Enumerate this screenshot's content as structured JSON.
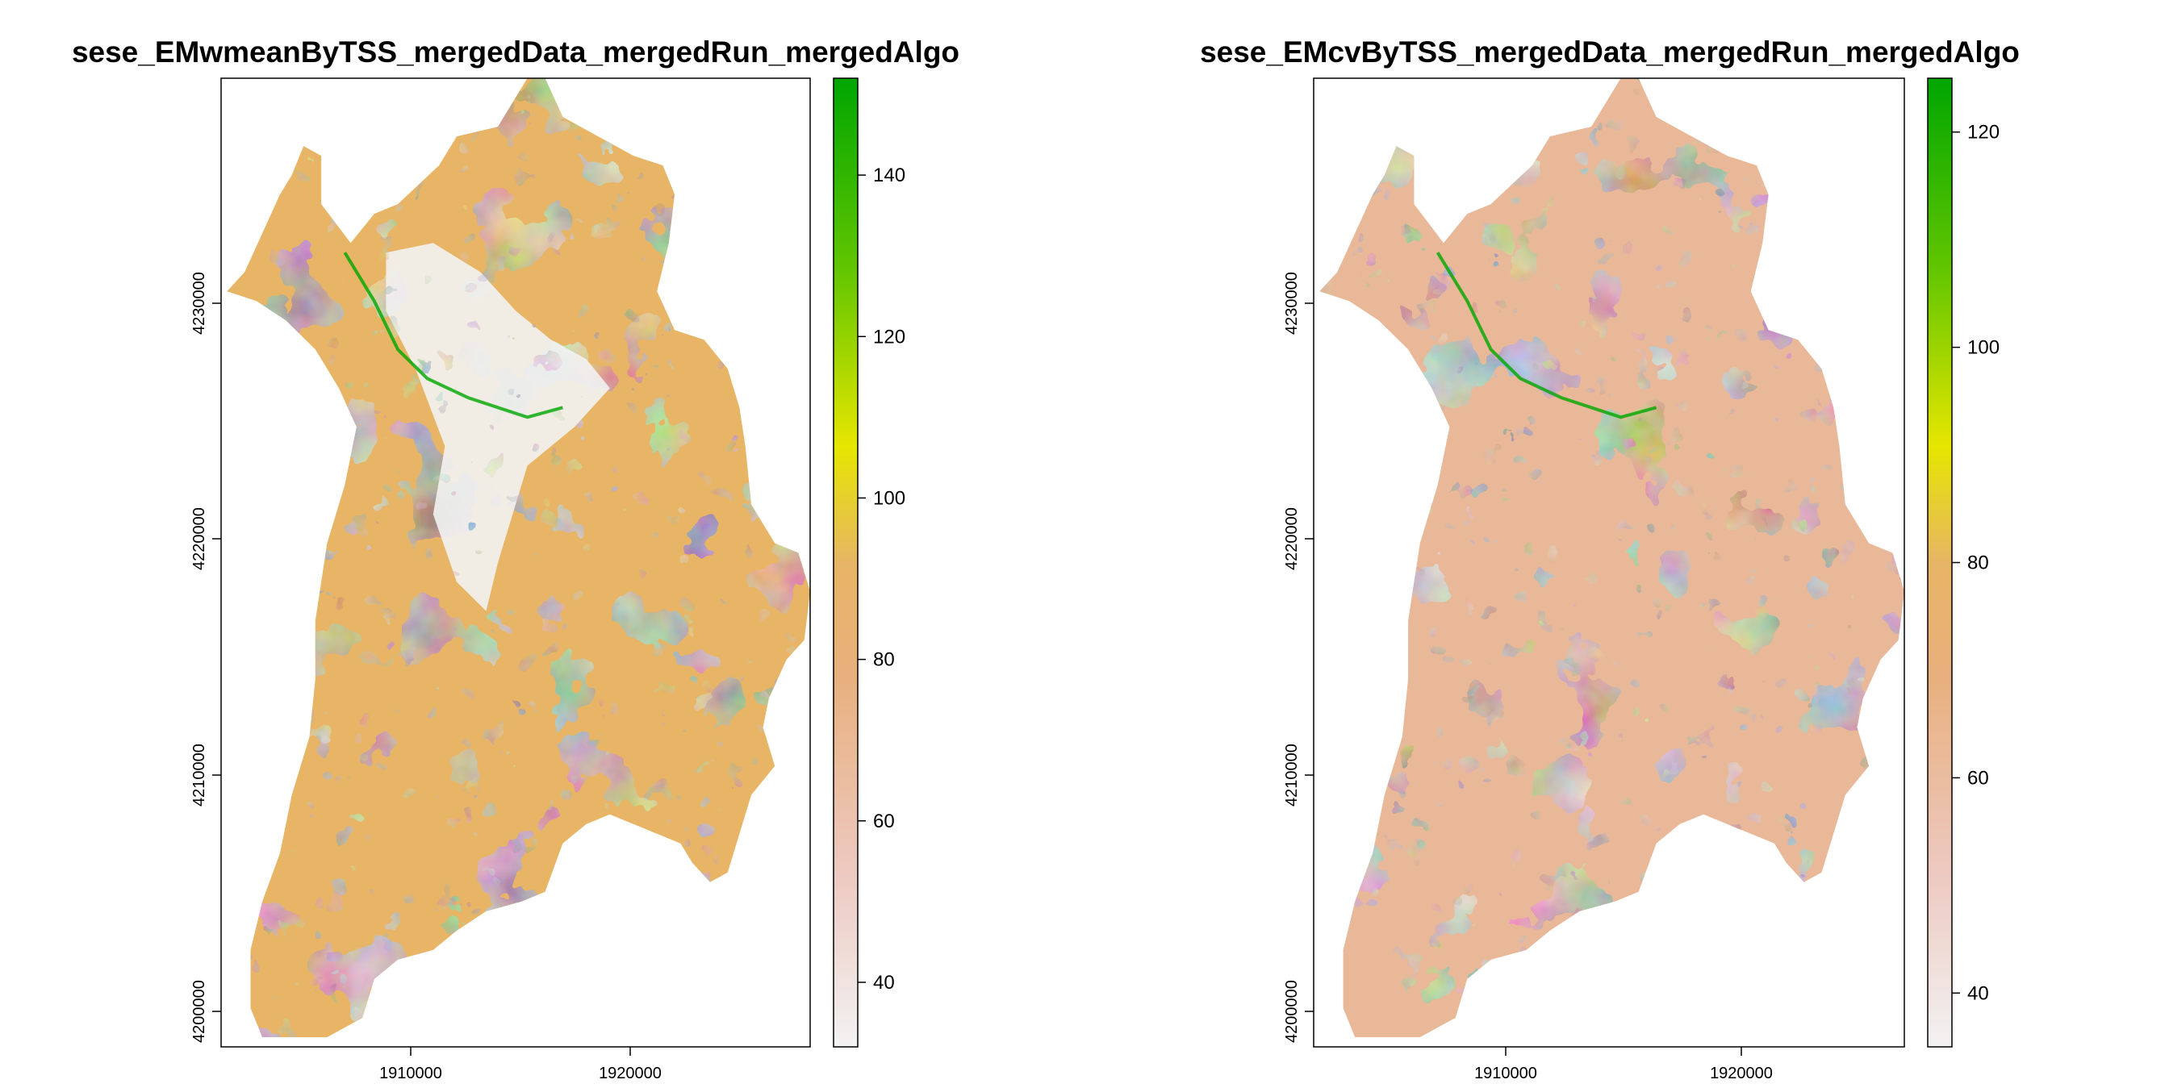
{
  "maps": [
    {
      "title": "sese_EMwmeanByTSS_mergedData_mergedRun_mergedAlgo",
      "x_ticks": [
        "1910000",
        "1920000"
      ],
      "y_ticks": [
        "4200000",
        "4210000",
        "4220000",
        "4230000"
      ],
      "legend_ticks": [
        "40",
        "60",
        "80",
        "100",
        "120",
        "140"
      ],
      "legend_range": [
        32,
        152
      ]
    },
    {
      "title": "sese_EMcvByTSS_mergedData_mergedRun_mergedAlgo",
      "x_ticks": [
        "1910000",
        "1920000"
      ],
      "y_ticks": [
        "4200000",
        "4210000",
        "4220000",
        "4230000"
      ],
      "legend_ticks": [
        "40",
        "60",
        "80",
        "100",
        "120"
      ],
      "legend_range": [
        35,
        125
      ]
    }
  ],
  "colors": {
    "low": "#f2f2f2",
    "pink": "#eab0a0",
    "tan": "#e7b565",
    "yellow": "#e6e600",
    "green": "#00a600"
  }
}
